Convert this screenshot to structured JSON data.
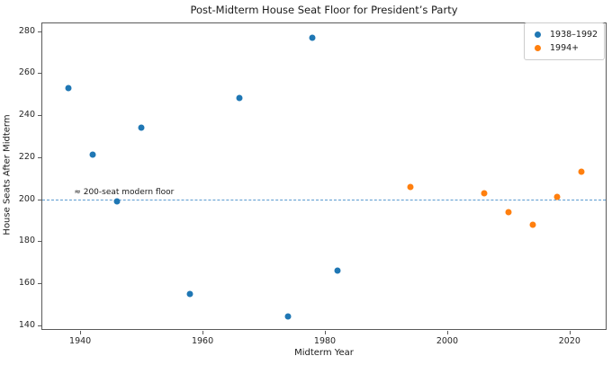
{
  "title": "Post-Midterm House Seat Floor for President’s Party",
  "chart_data": {
    "type": "scatter",
    "title": "Post-Midterm House Seat Floor for President’s Party",
    "xlabel": "Midterm Year",
    "ylabel": "House Seats After Midterm",
    "xlim": [
      1933.8,
      2026.2
    ],
    "ylim": [
      137.3,
      283.7
    ],
    "x_ticks": [
      1940,
      1960,
      1980,
      2000,
      2020
    ],
    "y_ticks": [
      140,
      160,
      180,
      200,
      220,
      240,
      260,
      280
    ],
    "grid": false,
    "legend_position": "upper right",
    "series": [
      {
        "name": "1938–1992",
        "color": "#1f77b4",
        "points": [
          {
            "x": 1938,
            "y": 253
          },
          {
            "x": 1942,
            "y": 221
          },
          {
            "x": 1946,
            "y": 199
          },
          {
            "x": 1950,
            "y": 234
          },
          {
            "x": 1958,
            "y": 155
          },
          {
            "x": 1966,
            "y": 248
          },
          {
            "x": 1974,
            "y": 144
          },
          {
            "x": 1978,
            "y": 277
          },
          {
            "x": 1982,
            "y": 166
          }
        ]
      },
      {
        "name": "1994+",
        "color": "#ff7f0e",
        "points": [
          {
            "x": 1994,
            "y": 206
          },
          {
            "x": 2006,
            "y": 203
          },
          {
            "x": 2010,
            "y": 194
          },
          {
            "x": 2014,
            "y": 188
          },
          {
            "x": 2018,
            "y": 201
          },
          {
            "x": 2022,
            "y": 213
          }
        ]
      }
    ],
    "reference_line": {
      "y": 200,
      "style": "dashed",
      "color": "#5b9bd0",
      "label": "≈ 200-seat modern floor",
      "label_x": 1939
    }
  },
  "legend": {
    "entries": [
      {
        "label": "1938–1992"
      },
      {
        "label": "1994+"
      }
    ]
  }
}
